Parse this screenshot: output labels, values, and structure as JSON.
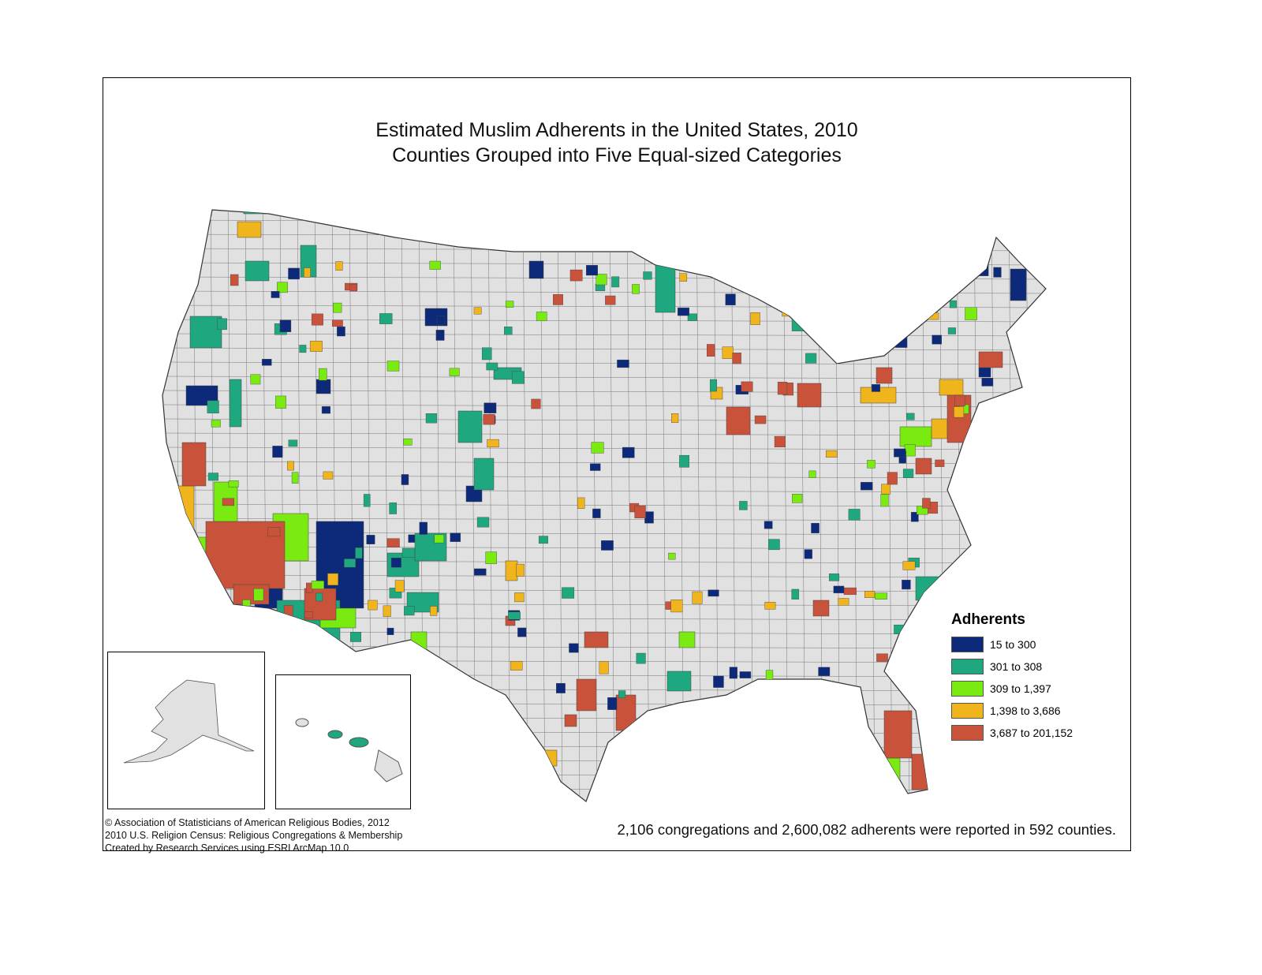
{
  "title": {
    "line1": "Estimated Muslim Adherents in the United States, 2010",
    "line2": "Counties Grouped into Five Equal-sized Categories"
  },
  "legend": {
    "title": "Adherents",
    "items": [
      {
        "label": "15 to 300",
        "color": "#0d2a7a"
      },
      {
        "label": "301 to 308",
        "color": "#1fa77f"
      },
      {
        "label": "309 to 1,397",
        "color": "#7aeb10"
      },
      {
        "label": "1,398 to 3,686",
        "color": "#f0b41c"
      },
      {
        "label": "3,687 to 201,152",
        "color": "#c8523a"
      }
    ]
  },
  "base_color": "#e1e1e1",
  "credits": [
    "© Association of Statisticians of American Religious Bodies, 2012",
    "2010 U.S. Religion Census: Religious Congregations & Membership",
    "Created by Research Services using ESRI ArcMap 10.0"
  ],
  "summary": "2,106 congregations and 2,600,082 adherents were reported in 592 counties."
}
